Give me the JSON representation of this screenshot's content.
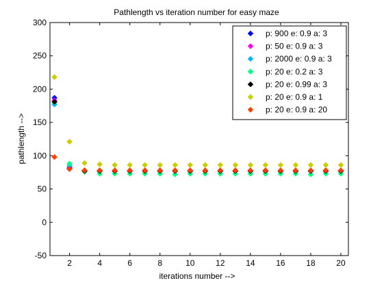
{
  "chart_data": {
    "type": "scatter",
    "title": "Pathlength vs iteration number for easy maze",
    "xlabel": "iterations number -->",
    "ylabel": "pathlength -->",
    "xlim": [
      0.7,
      20.5
    ],
    "ylim": [
      -50,
      300
    ],
    "xticks": [
      2,
      4,
      6,
      8,
      10,
      12,
      14,
      16,
      18,
      20
    ],
    "yticks": [
      -50,
      0,
      50,
      100,
      150,
      200,
      250,
      300
    ],
    "grid": false,
    "legend_position": "top-right",
    "marker": "diamond",
    "x": [
      1,
      2,
      3,
      4,
      5,
      6,
      7,
      8,
      9,
      10,
      11,
      12,
      13,
      14,
      15,
      16,
      17,
      18,
      19,
      20
    ],
    "series": [
      {
        "name": "p: 900 e: 0.9 a: 3",
        "color": "#0000ff",
        "values": [
          187,
          82,
          78,
          77,
          77,
          77,
          77,
          77,
          77,
          77,
          77,
          77,
          77,
          77,
          77,
          77,
          77,
          77,
          77,
          77
        ]
      },
      {
        "name": "p: 50 e: 0.9 a: 3",
        "color": "#ff00ff",
        "values": [
          183,
          81,
          78,
          77,
          77,
          77,
          77,
          77,
          77,
          77,
          77,
          77,
          77,
          77,
          77,
          77,
          77,
          77,
          77,
          77
        ]
      },
      {
        "name": "p: 2000 e: 0.9 a: 3",
        "color": "#00b4ff",
        "values": [
          177,
          85,
          78,
          77,
          77,
          77,
          77,
          77,
          77,
          77,
          77,
          77,
          77,
          77,
          77,
          77,
          77,
          77,
          77,
          77
        ]
      },
      {
        "name": "p: 20 e: 0.2 a: 3",
        "color": "#00ff80",
        "values": [
          180,
          88,
          76,
          73,
          73,
          73,
          73,
          73,
          72,
          73,
          73,
          73,
          73,
          73,
          73,
          73,
          73,
          72,
          73,
          73
        ]
      },
      {
        "name": "p: 20 e: 0.99 a: 3",
        "color": "#000000",
        "values": [
          181,
          80,
          77,
          77,
          77,
          77,
          77,
          77,
          77,
          77,
          77,
          77,
          77,
          77,
          77,
          77,
          77,
          77,
          77,
          77
        ]
      },
      {
        "name": "p: 20 e: 0.9 a: 1",
        "color": "#cccc00",
        "values": [
          218,
          121,
          89,
          87,
          86,
          86,
          86,
          86,
          86,
          86,
          86,
          86,
          86,
          86,
          86,
          86,
          86,
          86,
          86,
          86
        ]
      },
      {
        "name": "p: 20 e: 0.9 a: 20",
        "color": "#ff4000",
        "values": [
          98,
          80,
          78,
          78,
          78,
          78,
          78,
          78,
          78,
          78,
          78,
          78,
          78,
          78,
          78,
          78,
          78,
          78,
          78,
          78
        ]
      }
    ]
  }
}
